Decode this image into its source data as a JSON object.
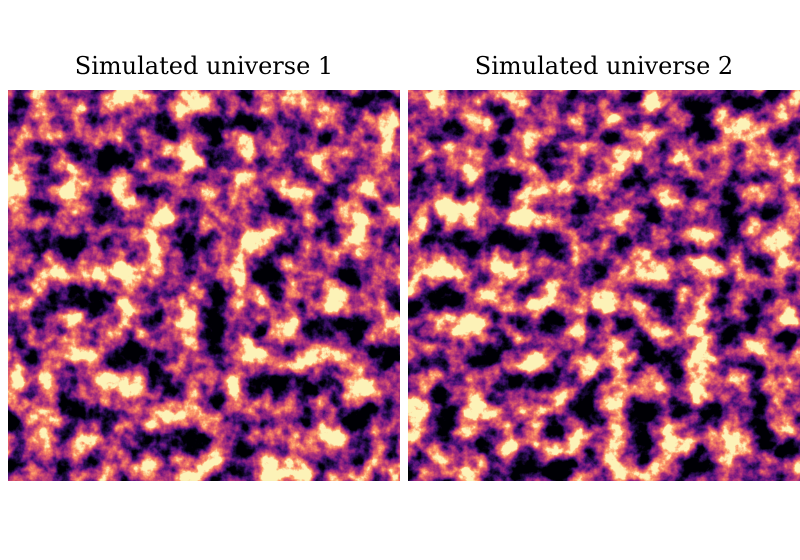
{
  "panels": [
    {
      "title": "Simulated universe 1"
    },
    {
      "title": "Simulated universe 2"
    }
  ]
}
